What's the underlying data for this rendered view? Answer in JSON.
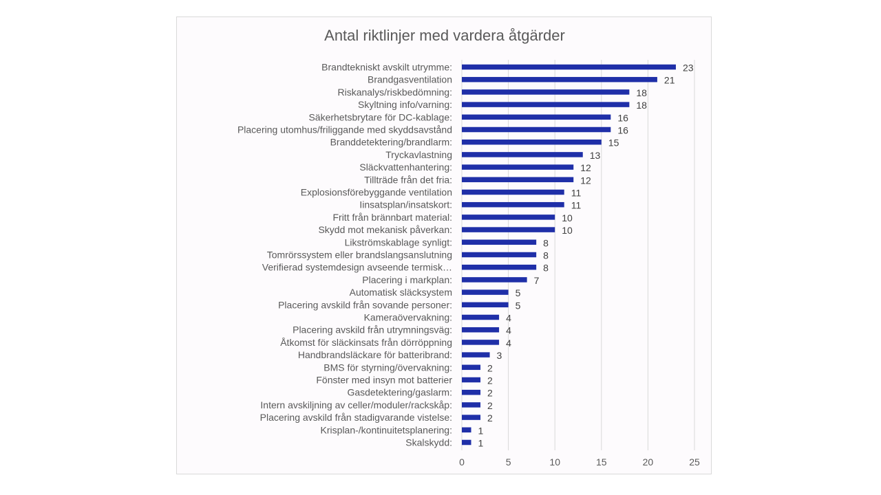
{
  "chart_data": {
    "type": "bar",
    "orientation": "horizontal",
    "title": "Antal riktlinjer med vardera åtgärder",
    "xlabel": "",
    "ylabel": "",
    "xlim": [
      0,
      25
    ],
    "xticks": [
      "0",
      "5",
      "10",
      "15",
      "20",
      "25"
    ],
    "grid": true,
    "legend": "none",
    "bar_color": "#1f2fa8",
    "categories": [
      "Brandtekniskt avskilt utrymme:",
      "Brandgasventilation",
      "Riskanalys/riskbedömning:",
      "Skyltning info/varning:",
      "Säkerhetsbrytare för DC-kablage:",
      "Placering utomhus/friliggande med skyddsavstånd",
      "Branddetektering/brandlarm:",
      "Tryckavlastning",
      "Släckvattenhantering:",
      "Tillträde från det fria:",
      "Explosionsförebyggande ventilation",
      "Iinsatsplan/insatskort:",
      "Fritt från brännbart material:",
      "Skydd mot mekanisk påverkan:",
      "Likströmskablage synligt:",
      "Tomrörssystem eller brandslangsanslutning",
      "Verifierad systemdesign avseende termisk…",
      "Placering i markplan:",
      "Automatisk släcksystem",
      "Placering avskild från sovande personer:",
      "Kameraövervakning:",
      "Placering avskild från utrymningsväg:",
      "Åtkomst för släckinsats från dörröppning",
      "Handbrandsläckare för batteribrand:",
      "BMS för styrning/övervakning:",
      "Fönster med insyn mot batterier",
      "Gasdetektering/gaslarm:",
      "Intern avskiljning av celler/moduler/rackskåp:",
      "Placering avskild från stadigvarande vistelse:",
      "Krisplan-/kontinuitetsplanering:",
      "Skalskydd:"
    ],
    "values": [
      23,
      21,
      18,
      18,
      16,
      16,
      15,
      13,
      12,
      12,
      11,
      11,
      10,
      10,
      8,
      8,
      8,
      7,
      5,
      5,
      4,
      4,
      4,
      3,
      2,
      2,
      2,
      2,
      2,
      1,
      1
    ]
  }
}
